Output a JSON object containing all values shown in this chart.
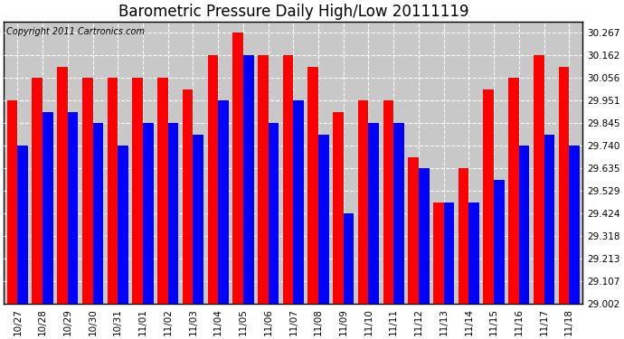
{
  "title": "Barometric Pressure Daily High/Low 20111119",
  "copyright": "Copyright 2011 Cartronics.com",
  "dates": [
    "10/27",
    "10/28",
    "10/29",
    "10/30",
    "10/31",
    "11/01",
    "11/02",
    "11/03",
    "11/04",
    "11/05",
    "11/06",
    "11/07",
    "11/08",
    "11/09",
    "11/10",
    "11/11",
    "11/12",
    "11/13",
    "11/14",
    "11/15",
    "11/16",
    "11/17",
    "11/18"
  ],
  "highs": [
    29.951,
    30.056,
    30.109,
    30.056,
    30.056,
    30.056,
    30.056,
    30.003,
    30.162,
    30.267,
    30.162,
    30.162,
    30.109,
    29.898,
    29.951,
    29.951,
    29.686,
    29.476,
    29.635,
    30.003,
    30.056,
    30.162,
    30.109
  ],
  "lows": [
    29.74,
    29.898,
    29.898,
    29.845,
    29.74,
    29.845,
    29.845,
    29.793,
    29.951,
    30.162,
    29.845,
    29.951,
    29.793,
    29.424,
    29.845,
    29.845,
    29.635,
    29.476,
    29.476,
    29.582,
    29.74,
    29.793,
    29.74
  ],
  "high_color": "#ff0000",
  "low_color": "#0000ff",
  "background_color": "#ffffff",
  "plot_bg_color": "#c8c8c8",
  "grid_color": "#ffffff",
  "ylim_min": 29.002,
  "ylim_max": 30.32,
  "yticks": [
    29.002,
    29.107,
    29.213,
    29.318,
    29.424,
    29.529,
    29.635,
    29.74,
    29.845,
    29.951,
    30.056,
    30.162,
    30.267
  ],
  "bar_width": 0.42,
  "title_fontsize": 12,
  "tick_fontsize": 7.5,
  "copyright_fontsize": 7
}
